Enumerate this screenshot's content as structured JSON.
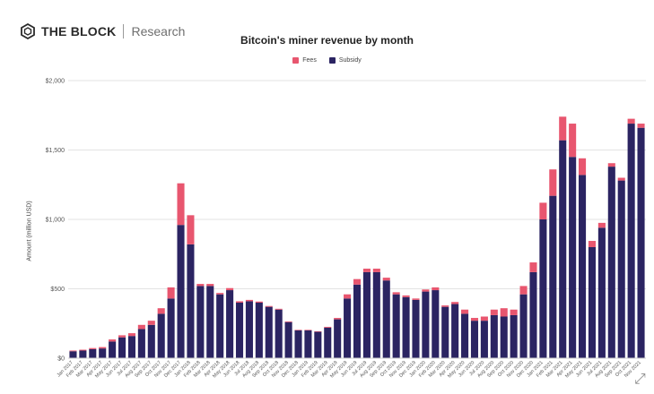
{
  "brand": {
    "name": "THE BLOCK",
    "sub": "Research",
    "icon": "the-block-cube-logo"
  },
  "expand_icon": "expand-arrows-icon",
  "colors": {
    "fees": "#e8566f",
    "subsidy": "#2b2462",
    "grid": "#e3e3e3",
    "text": "#555555"
  },
  "chart_data": {
    "type": "bar",
    "stacked": true,
    "title": "Bitcoin's miner revenue by month",
    "ylabel": "Amount (million USD)",
    "xlabel": "",
    "ylim": [
      0,
      2000
    ],
    "yticks": [
      0,
      500,
      1000,
      1500,
      2000
    ],
    "ytick_labels": [
      "$0",
      "$500",
      "$1,000",
      "$1,500",
      "$2,000"
    ],
    "grid": true,
    "legend_position": "top-center",
    "categories": [
      "Jan 2017",
      "Feb 2017",
      "Mar 2017",
      "Apr 2017",
      "May 2017",
      "Jun 2017",
      "Jul 2017",
      "Aug 2017",
      "Sep 2017",
      "Oct 2017",
      "Nov 2017",
      "Dec 2017",
      "Jan 2018",
      "Feb 2018",
      "Mar 2018",
      "Apr 2018",
      "May 2018",
      "Jun 2018",
      "Jul 2018",
      "Aug 2018",
      "Sep 2018",
      "Oct 2018",
      "Nov 2018",
      "Dec 2018",
      "Jan 2019",
      "Feb 2019",
      "Mar 2019",
      "Apr 2019",
      "May 2019",
      "Jun 2019",
      "Jul 2019",
      "Aug 2019",
      "Sep 2019",
      "Oct 2019",
      "Nov 2019",
      "Dec 2019",
      "Jan 2020",
      "Feb 2020",
      "Mar 2020",
      "Apr 2020",
      "May 2020",
      "Jun 2020",
      "Jul 2020",
      "Aug 2020",
      "Sep 2020",
      "Oct 2020",
      "Nov 2020",
      "Dec 2020",
      "Jan 2021",
      "Feb 2021",
      "Mar 2021",
      "Apr 2021",
      "May 2021",
      "Jun 2021",
      "Jul 2021",
      "Aug 2021",
      "Sep 2021",
      "Oct 2021",
      "Nov 2021"
    ],
    "series": [
      {
        "name": "Subsidy",
        "values": [
          50,
          55,
          65,
          70,
          120,
          150,
          160,
          210,
          240,
          320,
          430,
          960,
          820,
          520,
          520,
          460,
          490,
          400,
          410,
          400,
          370,
          350,
          260,
          200,
          200,
          190,
          220,
          280,
          430,
          530,
          620,
          620,
          560,
          460,
          440,
          420,
          480,
          490,
          370,
          390,
          320,
          270,
          270,
          310,
          300,
          310,
          460,
          620,
          1000,
          1170,
          1570,
          1450,
          1320,
          800,
          940,
          1380,
          1280,
          1690,
          1660
        ]
      },
      {
        "name": "Fees",
        "values": [
          5,
          6,
          8,
          10,
          15,
          15,
          20,
          30,
          30,
          40,
          80,
          300,
          210,
          15,
          15,
          10,
          15,
          10,
          10,
          8,
          6,
          6,
          5,
          4,
          4,
          4,
          6,
          10,
          30,
          40,
          25,
          25,
          20,
          15,
          12,
          10,
          15,
          20,
          10,
          15,
          30,
          20,
          30,
          40,
          60,
          40,
          60,
          70,
          120,
          190,
          170,
          240,
          120,
          45,
          35,
          25,
          20,
          35,
          30
        ]
      }
    ]
  }
}
